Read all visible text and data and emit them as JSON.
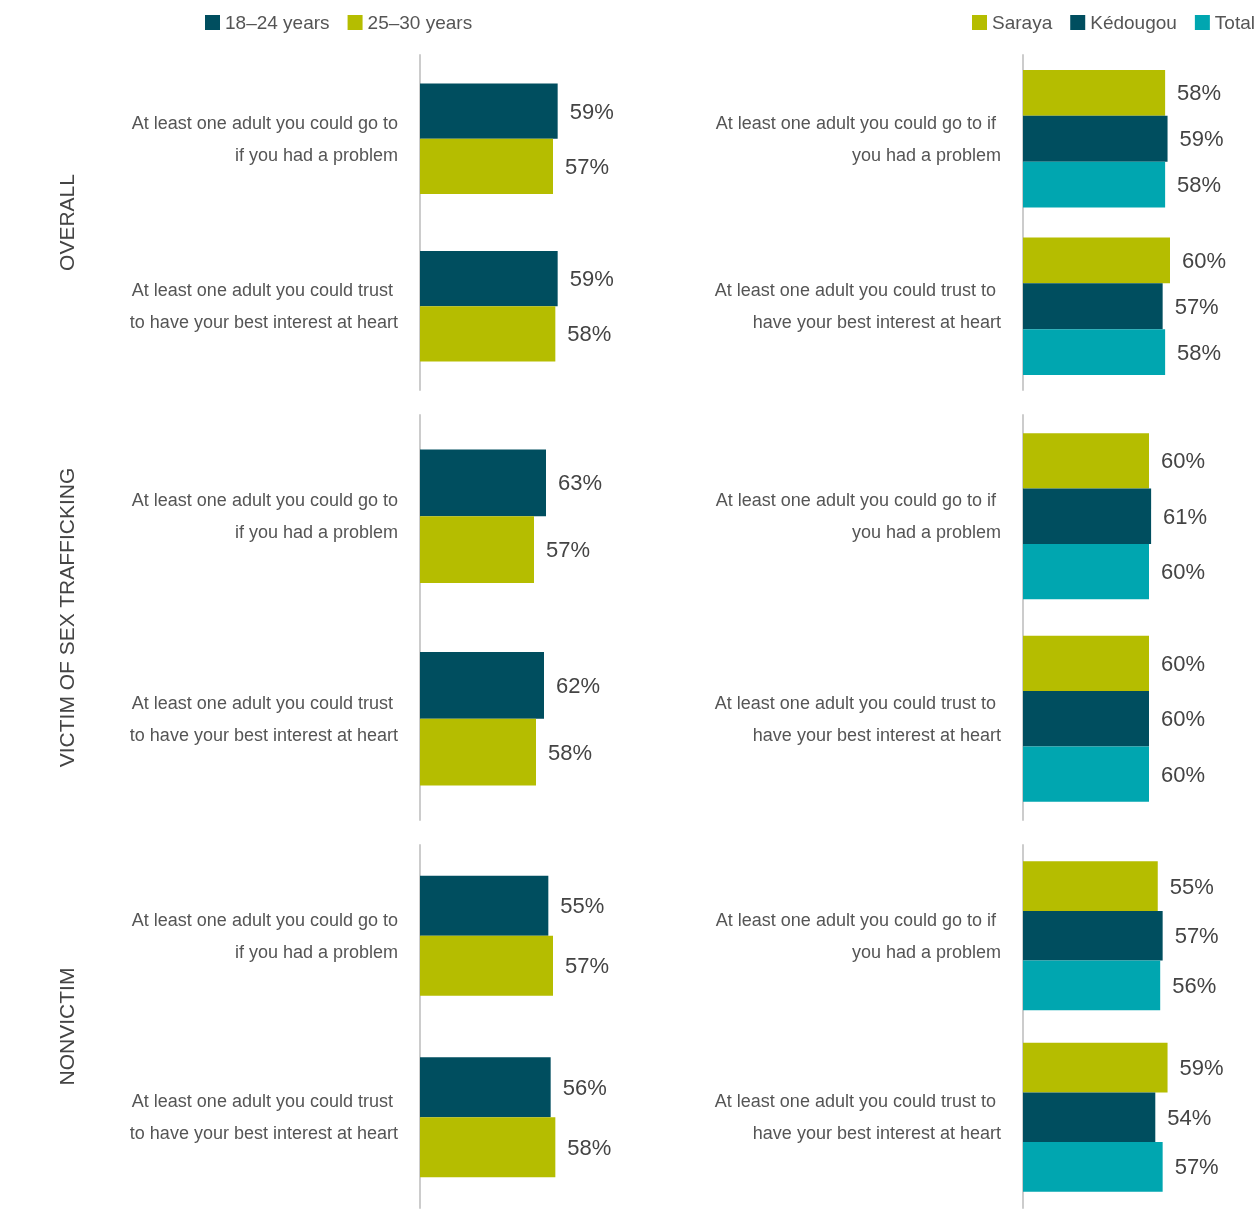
{
  "chart_data": [
    {
      "type": "bar",
      "orientation": "horizontal",
      "ylabel": "OVERALL",
      "categories": [
        "At least one adult you could go to if you had a problem",
        "At least one adult you could trust to have your best interest at heart"
      ],
      "legend": "top left",
      "tick_labels": "y",
      "grid": false,
      "series": [
        {
          "name": "18–24 years",
          "color": "#004e5f",
          "values": [
            59,
            59
          ],
          "value_labels": [
            "59%",
            "59%"
          ]
        },
        {
          "name": "25–30 years",
          "color": "#b5bd00",
          "values": [
            57,
            58
          ],
          "value_labels": [
            "57%",
            "58%"
          ]
        }
      ]
    },
    {
      "type": "bar",
      "orientation": "horizontal",
      "categories": [
        "At least one adult you could go to if you had a problem",
        "At least one adult you could trust to have your best interest at heart"
      ],
      "legend": "top right",
      "tick_labels": "y",
      "grid": false,
      "series": [
        {
          "name": "Saraya",
          "color": "#b5bd00",
          "values": [
            58,
            60
          ],
          "value_labels": [
            "58%",
            "60%"
          ]
        },
        {
          "name": "Kédougou",
          "color": "#004e5f",
          "values": [
            59,
            57
          ],
          "value_labels": [
            "59%",
            "57%"
          ]
        },
        {
          "name": "Total",
          "color": "#00a6b0",
          "values": [
            58,
            58
          ],
          "value_labels": [
            "58%",
            "58%"
          ]
        }
      ]
    },
    {
      "type": "bar",
      "orientation": "horizontal",
      "ylabel": "VICTIM OF SEX TRAFFICKING",
      "categories": [
        "At least one adult you could go to if you had a problem",
        "At least one adult you could trust to have your best interest at heart"
      ],
      "tick_labels": "y",
      "grid": false,
      "series": [
        {
          "color": "#004e5f",
          "values": [
            63,
            62
          ],
          "value_labels": [
            "63%",
            "62%"
          ]
        },
        {
          "color": "#b5bd00",
          "values": [
            57,
            58
          ],
          "value_labels": [
            "57%",
            "58%"
          ]
        }
      ]
    },
    {
      "type": "bar",
      "orientation": "horizontal",
      "categories": [
        "At least one adult you could go to if you had a problem",
        "At least one adult you could trust to have your best interest at heart"
      ],
      "tick_labels": "y",
      "grid": false,
      "series": [
        {
          "color": "#b5bd00",
          "values": [
            60,
            60
          ],
          "value_labels": [
            "60%",
            "60%"
          ]
        },
        {
          "color": "#004e5f",
          "values": [
            61,
            60
          ],
          "value_labels": [
            "61%",
            "60%"
          ]
        },
        {
          "color": "#00a6b0",
          "values": [
            60,
            60
          ],
          "value_labels": [
            "60%",
            "60%"
          ]
        }
      ]
    },
    {
      "type": "bar",
      "orientation": "horizontal",
      "ylabel": "NONVICTIM",
      "categories": [
        "At least one adult you could go to if you had a problem",
        "At least one adult you could trust to have your best interest at heart"
      ],
      "tick_labels": "y",
      "grid": false,
      "series": [
        {
          "color": "#004e5f",
          "values": [
            55,
            56
          ],
          "value_labels": [
            "55%",
            "56%"
          ]
        },
        {
          "color": "#b5bd00",
          "values": [
            57,
            58
          ],
          "value_labels": [
            "57%",
            "58%"
          ]
        }
      ]
    },
    {
      "type": "bar",
      "orientation": "horizontal",
      "categories": [
        "At least one adult you could go to if you had a problem",
        "At least one adult you could trust to have your best interest at heart"
      ],
      "tick_labels": "y",
      "grid": false,
      "series": [
        {
          "color": "#b5bd00",
          "values": [
            55,
            59
          ],
          "value_labels": [
            "55%",
            "59%"
          ]
        },
        {
          "color": "#004e5f",
          "values": [
            57,
            54
          ],
          "value_labels": [
            "57%",
            "54%"
          ]
        },
        {
          "color": "#00a6b0",
          "values": [
            56,
            57
          ],
          "value_labels": [
            "56%",
            "57%"
          ]
        }
      ]
    }
  ]
}
